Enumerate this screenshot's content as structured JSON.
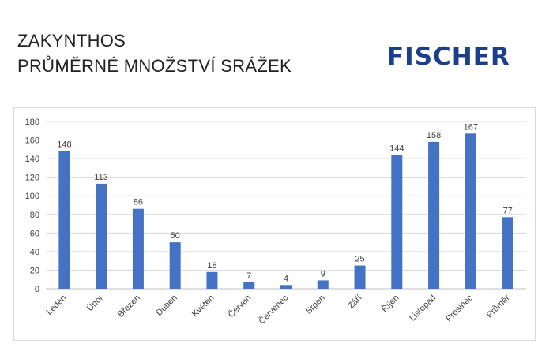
{
  "header": {
    "title_line1": "ZAKYNTHOS",
    "title_line2": "PRŮMĚRNÉ MNOŽSTVÍ SRÁŽEK",
    "brand": "FISCHER"
  },
  "colors": {
    "bar": "#4472c4",
    "grid": "#d9d9d9",
    "brand": "#1b3f8b"
  },
  "chart_data": {
    "type": "bar",
    "categories": [
      "Leden",
      "Únor",
      "Březen",
      "Duben",
      "Květen",
      "Červen",
      "Červenec",
      "Srpen",
      "Září",
      "Říjen",
      "Listopad",
      "Prosinec",
      "Průměr"
    ],
    "values": [
      148,
      113,
      86,
      50,
      18,
      7,
      4,
      9,
      25,
      144,
      158,
      167,
      77
    ],
    "ylim": [
      0,
      180
    ],
    "yticks": [
      0,
      20,
      40,
      60,
      80,
      100,
      120,
      140,
      160,
      180
    ],
    "grid": true,
    "data_labels": true,
    "legend": "none"
  }
}
